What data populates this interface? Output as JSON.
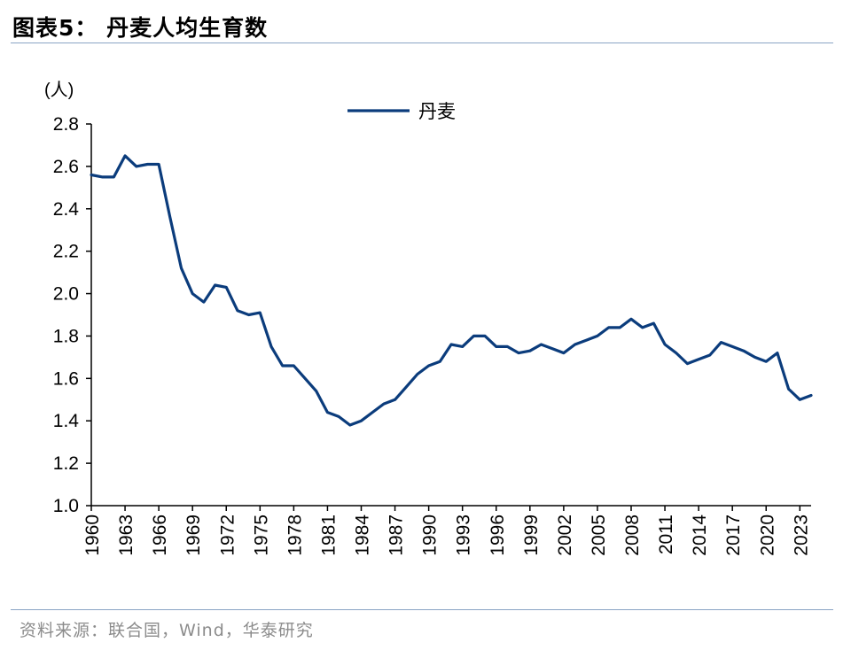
{
  "header": {
    "title": "图表5：  丹麦人均生育数"
  },
  "footer": {
    "source": "资料来源：联合国，Wind，华泰研究"
  },
  "chart_data": {
    "type": "line",
    "title": "图表5：  丹麦人均生育数",
    "unit_label": "(人)",
    "xlabel": "",
    "ylabel": "",
    "ylim": [
      1.0,
      2.8
    ],
    "yticks": [
      "1.0",
      "1.2",
      "1.4",
      "1.6",
      "1.8",
      "2.0",
      "2.2",
      "2.4",
      "2.6",
      "2.8"
    ],
    "xlim": [
      1960,
      2024
    ],
    "xticks": [
      "1960",
      "1963",
      "1966",
      "1969",
      "1972",
      "1975",
      "1978",
      "1981",
      "1984",
      "1987",
      "1990",
      "1993",
      "1996",
      "1999",
      "2002",
      "2005",
      "2008",
      "2011",
      "2014",
      "2017",
      "2020",
      "2023"
    ],
    "legend_position": "top-center",
    "grid": false,
    "line_color": "#0b3c7c",
    "series": [
      {
        "name": "丹麦",
        "x": [
          1960,
          1961,
          1962,
          1963,
          1964,
          1965,
          1966,
          1967,
          1968,
          1969,
          1970,
          1971,
          1972,
          1973,
          1974,
          1975,
          1976,
          1977,
          1978,
          1979,
          1980,
          1981,
          1982,
          1983,
          1984,
          1985,
          1986,
          1987,
          1988,
          1989,
          1990,
          1991,
          1992,
          1993,
          1994,
          1995,
          1996,
          1997,
          1998,
          1999,
          2000,
          2001,
          2002,
          2003,
          2004,
          2005,
          2006,
          2007,
          2008,
          2009,
          2010,
          2011,
          2012,
          2013,
          2014,
          2015,
          2016,
          2017,
          2018,
          2019,
          2020,
          2021,
          2022,
          2023,
          2024
        ],
        "values": [
          2.56,
          2.55,
          2.55,
          2.65,
          2.6,
          2.61,
          2.61,
          2.36,
          2.12,
          2.0,
          1.96,
          2.04,
          2.03,
          1.92,
          1.9,
          1.91,
          1.75,
          1.66,
          1.66,
          1.6,
          1.54,
          1.44,
          1.42,
          1.38,
          1.4,
          1.44,
          1.48,
          1.5,
          1.56,
          1.62,
          1.66,
          1.68,
          1.76,
          1.75,
          1.8,
          1.8,
          1.75,
          1.75,
          1.72,
          1.73,
          1.76,
          1.74,
          1.72,
          1.76,
          1.78,
          1.8,
          1.84,
          1.84,
          1.88,
          1.84,
          1.86,
          1.76,
          1.72,
          1.67,
          1.69,
          1.71,
          1.77,
          1.75,
          1.73,
          1.7,
          1.68,
          1.72,
          1.55,
          1.5,
          1.52
        ]
      }
    ]
  }
}
